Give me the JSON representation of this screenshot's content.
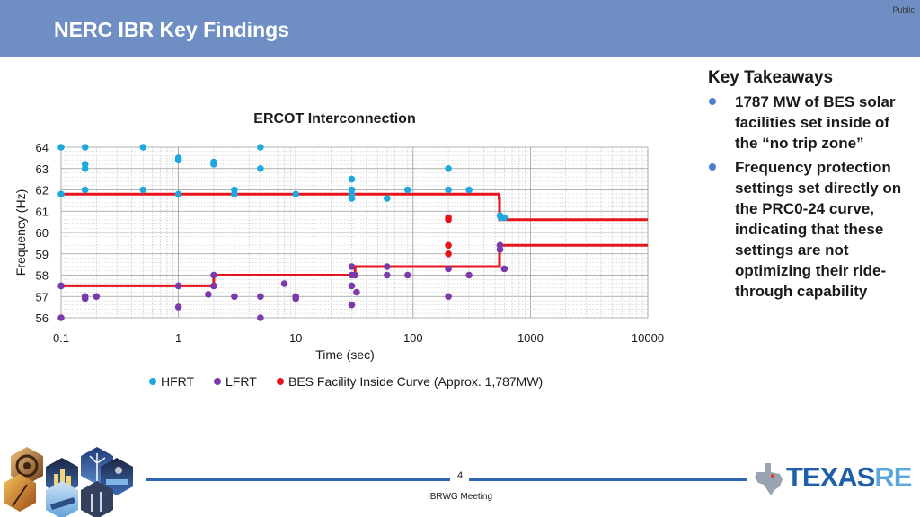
{
  "header": {
    "title": "NERC IBR Key Findings",
    "classification": "Public"
  },
  "takeaways": {
    "heading": "Key Takeaways",
    "items": [
      "1787 MW of BES solar facilities set inside of the “no trip zone”",
      "Frequency protection settings set directly on the PRC0-24 curve, indicating that these settings are not optimizing their ride-through capability"
    ]
  },
  "footer": {
    "page": "4",
    "meeting": "IBRWG Meeting",
    "logo_main": "TEXAS",
    "logo_accent": "RE"
  },
  "colors": {
    "header": "#6f8fc4",
    "hfrt": "#1fa8e0",
    "lfrt": "#7a3aab",
    "inside": "#e8141c",
    "curve": "#e8141c",
    "bullet": "#4d7fd0",
    "accent_line": "#2f66b4"
  },
  "icons": [
    "turbine-tile-icon",
    "wind-tile-icon",
    "city-tile-icon",
    "solar-tile-icon",
    "texas-map-icon"
  ],
  "chart_data": {
    "type": "scatter",
    "title": "ERCOT Interconnection",
    "xlabel": "Time (sec)",
    "ylabel": "Frequency (Hz)",
    "xscale": "log",
    "xlim": [
      0.1,
      10000
    ],
    "ylim": [
      56,
      64
    ],
    "xticks": [
      0.1,
      1,
      10,
      100,
      1000,
      10000
    ],
    "xtick_labels": [
      "0.1",
      "1",
      "10",
      "100",
      "1000",
      "10000"
    ],
    "yticks": [
      56,
      57,
      58,
      59,
      60,
      61,
      62,
      63,
      64
    ],
    "grid": true,
    "legend_position": "bottom",
    "curves": [
      {
        "points": [
          [
            0.1,
            61.8
          ],
          [
            540,
            61.8
          ],
          [
            540,
            61.6
          ],
          [
            545,
            61.6
          ],
          [
            545,
            60.6
          ],
          [
            10000,
            60.6
          ]
        ]
      },
      {
        "points": [
          [
            0.1,
            57.5
          ],
          [
            2,
            57.5
          ],
          [
            2,
            58.0
          ],
          [
            32,
            58.0
          ],
          [
            32,
            58.4
          ],
          [
            545,
            58.4
          ],
          [
            545,
            59.4
          ],
          [
            10000,
            59.4
          ]
        ]
      }
    ],
    "series": [
      {
        "name": "HFRT",
        "points": [
          [
            0.1,
            64
          ],
          [
            0.16,
            64
          ],
          [
            0.5,
            64
          ],
          [
            5,
            64
          ],
          [
            1,
            63.5
          ],
          [
            1,
            63.4
          ],
          [
            0.16,
            63.2
          ],
          [
            0.16,
            63.0
          ],
          [
            2,
            63.3
          ],
          [
            2,
            63.2
          ],
          [
            5,
            63.0
          ],
          [
            200,
            63.0
          ],
          [
            30,
            62.5
          ],
          [
            0.1,
            61.8
          ],
          [
            0.16,
            62.0
          ],
          [
            0.5,
            62.0
          ],
          [
            1,
            61.8
          ],
          [
            3,
            62.0
          ],
          [
            3,
            61.8
          ],
          [
            10,
            61.8
          ],
          [
            30,
            62.0
          ],
          [
            30,
            61.8
          ],
          [
            30,
            61.6
          ],
          [
            60,
            61.6
          ],
          [
            90,
            62.0
          ],
          [
            200,
            62.0
          ],
          [
            300,
            62.0
          ],
          [
            550,
            60.8
          ],
          [
            560,
            60.7
          ],
          [
            600,
            60.7
          ]
        ]
      },
      {
        "name": "LFRT",
        "points": [
          [
            0.1,
            56
          ],
          [
            0.1,
            57.5
          ],
          [
            0.16,
            57.0
          ],
          [
            0.16,
            56.9
          ],
          [
            0.2,
            57.0
          ],
          [
            1,
            57.5
          ],
          [
            1,
            56.5
          ],
          [
            1.8,
            57.1
          ],
          [
            2,
            58.0
          ],
          [
            2,
            57.5
          ],
          [
            3,
            57.0
          ],
          [
            5,
            57.0
          ],
          [
            5,
            56.0
          ],
          [
            8,
            57.6
          ],
          [
            10,
            57.0
          ],
          [
            10,
            56.9
          ],
          [
            30,
            58.4
          ],
          [
            30,
            58.0
          ],
          [
            30,
            57.5
          ],
          [
            30,
            56.6
          ],
          [
            32,
            58.0
          ],
          [
            33,
            57.2
          ],
          [
            60,
            58.4
          ],
          [
            60,
            58.0
          ],
          [
            90,
            58.0
          ],
          [
            200,
            58.3
          ],
          [
            200,
            57.0
          ],
          [
            300,
            58.0
          ],
          [
            550,
            59.4
          ],
          [
            550,
            59.2
          ],
          [
            600,
            58.3
          ]
        ]
      },
      {
        "name": "BES Facility Inside Curve (Approx. 1,787MW)",
        "points": [
          [
            200,
            60.7
          ],
          [
            200,
            60.6
          ],
          [
            200,
            59.4
          ],
          [
            200,
            59.0
          ]
        ]
      }
    ]
  }
}
